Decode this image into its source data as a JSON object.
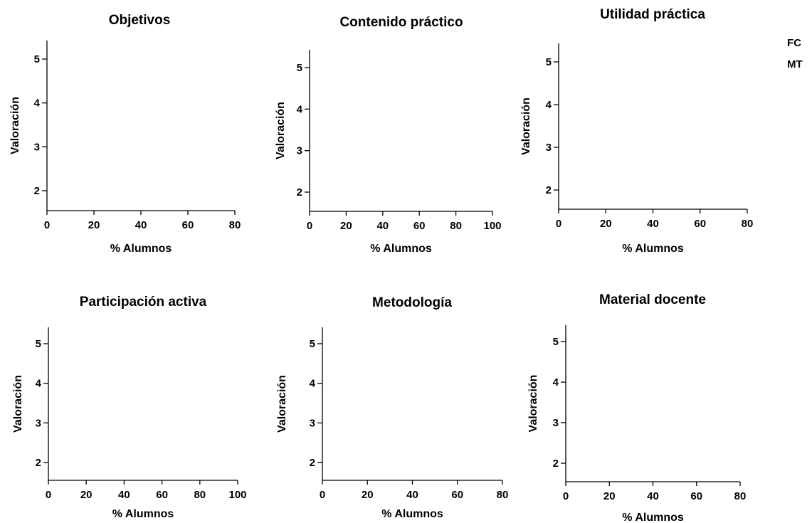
{
  "legend": {
    "items": [
      "FC",
      "MT"
    ]
  },
  "chart_data": [
    {
      "type": "bar",
      "title": "Objetivos",
      "xlabel": "% Alumnos",
      "ylabel": "Valoración",
      "xlim": [
        0,
        80
      ],
      "xticks": [
        0,
        20,
        40,
        60,
        80
      ],
      "yticks": [
        2,
        3,
        4,
        5
      ],
      "series": [
        {
          "name": "FC",
          "values": []
        },
        {
          "name": "MT",
          "values": []
        }
      ]
    },
    {
      "type": "bar",
      "title": "Contenido práctico",
      "xlabel": "% Alumnos",
      "ylabel": "Valoración",
      "xlim": [
        0,
        100
      ],
      "xticks": [
        0,
        20,
        40,
        60,
        80,
        100
      ],
      "yticks": [
        2,
        3,
        4,
        5
      ],
      "series": [
        {
          "name": "FC",
          "values": []
        },
        {
          "name": "MT",
          "values": []
        }
      ]
    },
    {
      "type": "bar",
      "title": "Utilidad práctica",
      "xlabel": "% Alumnos",
      "ylabel": "Valoración",
      "xlim": [
        0,
        80
      ],
      "xticks": [
        0,
        20,
        40,
        60,
        80
      ],
      "yticks": [
        2,
        3,
        4,
        5
      ],
      "series": [
        {
          "name": "FC",
          "values": []
        },
        {
          "name": "MT",
          "values": []
        }
      ]
    },
    {
      "type": "bar",
      "title": "Participación activa",
      "xlabel": "% Alumnos",
      "ylabel": "Valoración",
      "xlim": [
        0,
        100
      ],
      "xticks": [
        0,
        20,
        40,
        60,
        80,
        100
      ],
      "yticks": [
        2,
        3,
        4,
        5
      ],
      "series": [
        {
          "name": "FC",
          "values": []
        },
        {
          "name": "MT",
          "values": []
        }
      ]
    },
    {
      "type": "bar",
      "title": "Metodología",
      "xlabel": "% Alumnos",
      "ylabel": "Valoración",
      "xlim": [
        0,
        80
      ],
      "xticks": [
        0,
        20,
        40,
        60,
        80
      ],
      "yticks": [
        2,
        3,
        4,
        5
      ],
      "series": [
        {
          "name": "FC",
          "values": []
        },
        {
          "name": "MT",
          "values": []
        }
      ]
    },
    {
      "type": "bar",
      "title": "Material docente",
      "xlabel": "% Alumnos",
      "ylabel": "Valoración",
      "xlim": [
        0,
        80
      ],
      "xticks": [
        0,
        20,
        40,
        60,
        80
      ],
      "yticks": [
        2,
        3,
        4,
        5
      ],
      "series": [
        {
          "name": "FC",
          "values": []
        },
        {
          "name": "MT",
          "values": []
        }
      ]
    }
  ]
}
